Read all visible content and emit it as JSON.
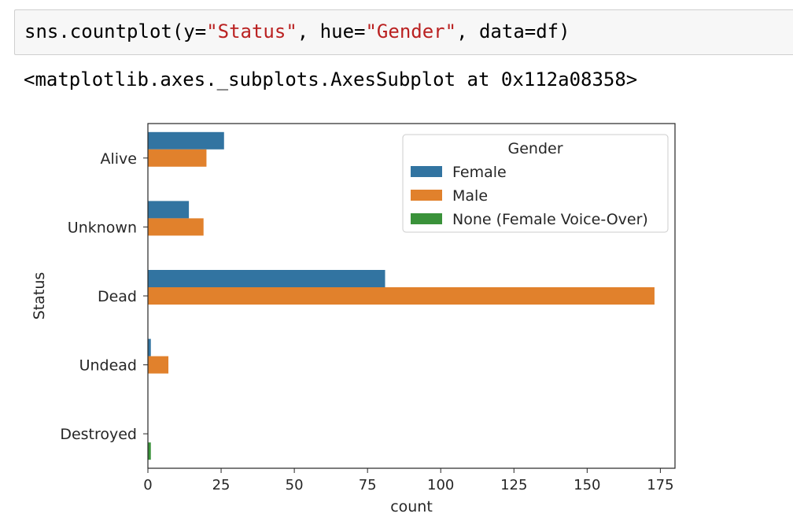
{
  "cell": {
    "code": {
      "prefix": "sns.countplot(y=",
      "arg_y": "\"Status\"",
      "sep_hue": ", hue=",
      "arg_hue": "\"Gender\"",
      "suffix": ", data=df)"
    },
    "output": "<matplotlib.axes._subplots.AxesSubplot at 0x112a08358>"
  },
  "colors": {
    "female": "#3274a1",
    "male": "#e1812c",
    "none_voice_over": "#3a923a",
    "text": "#262626",
    "code_string": "#ba2121"
  },
  "chart_data": {
    "type": "bar",
    "orientation": "horizontal",
    "categories": [
      "Alive",
      "Unknown",
      "Dead",
      "Undead",
      "Destroyed"
    ],
    "series": [
      {
        "name": "Female",
        "values": [
          26,
          14,
          81,
          1,
          0
        ]
      },
      {
        "name": "Male",
        "values": [
          20,
          19,
          173,
          7,
          0
        ]
      },
      {
        "name": "None (Female Voice-Over)",
        "values": [
          0,
          0,
          0,
          0,
          1
        ]
      }
    ],
    "xlabel": "count",
    "ylabel": "Status",
    "xlim": [
      0,
      180
    ],
    "xticks": [
      0,
      25,
      50,
      75,
      100,
      125,
      150,
      175
    ],
    "grid": false,
    "legend": {
      "title": "Gender",
      "placement": "top-right",
      "entries": [
        "Female",
        "Male",
        "None (Female Voice-Over)"
      ]
    }
  }
}
